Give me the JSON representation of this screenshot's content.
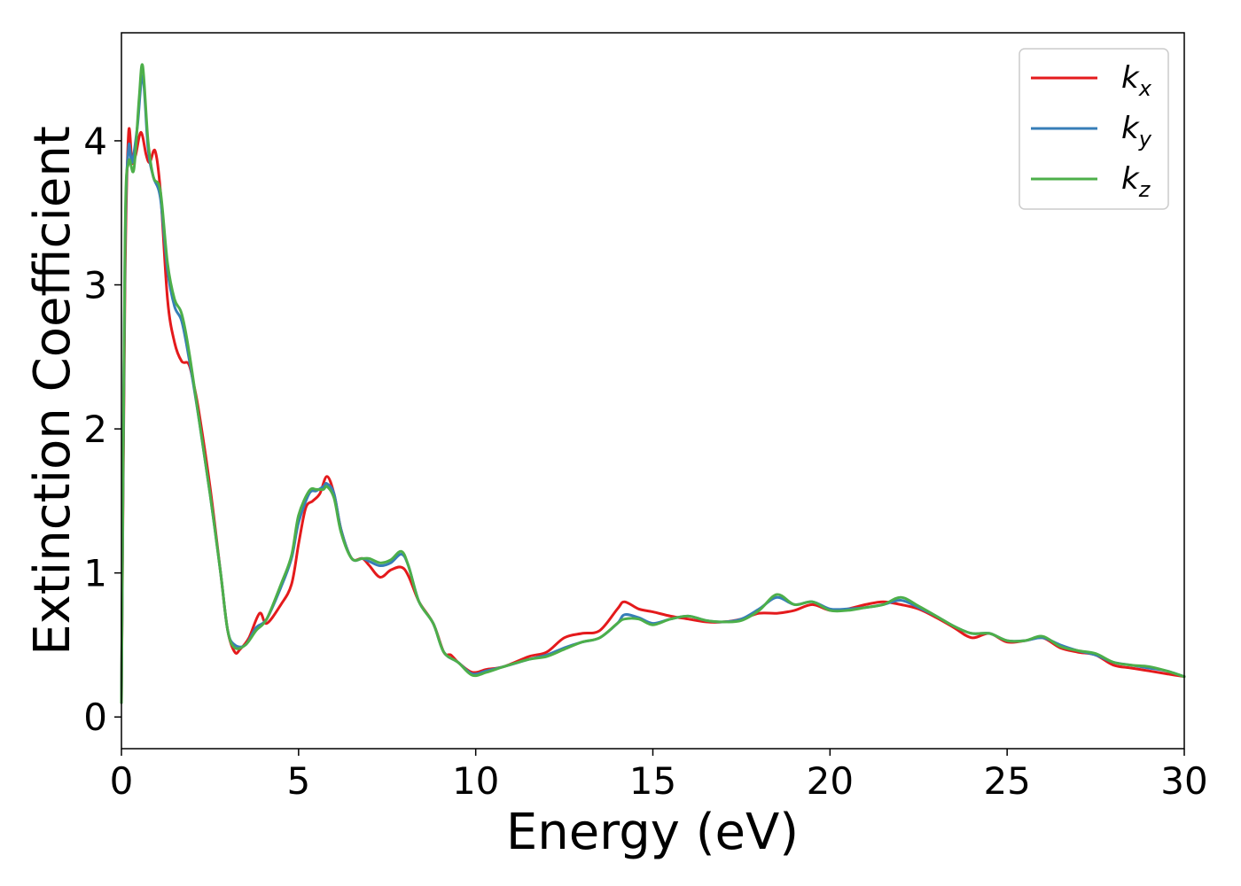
{
  "chart_data": {
    "type": "line",
    "xlabel": "Energy (eV)",
    "ylabel": "Extinction Coefficient",
    "xlim": [
      0,
      30
    ],
    "ylim": [
      -0.22,
      4.75
    ],
    "xticks": [
      "0",
      "5",
      "10",
      "15",
      "20",
      "25",
      "30"
    ],
    "yticks": [
      "0",
      "1",
      "2",
      "3",
      "4"
    ],
    "grid": false,
    "legend_position": "top-right",
    "series": [
      {
        "name": "k",
        "subscript": "x",
        "color": "#e41a1c",
        "x": [
          0,
          0.1,
          0.2,
          0.3,
          0.4,
          0.55,
          0.7,
          0.8,
          0.95,
          1.1,
          1.3,
          1.5,
          1.7,
          1.9,
          2.05,
          2.2,
          2.5,
          2.8,
          3.0,
          3.2,
          3.35,
          3.6,
          3.9,
          4.1,
          4.5,
          4.8,
          5.0,
          5.2,
          5.4,
          5.6,
          5.8,
          6.0,
          6.2,
          6.5,
          6.8,
          7.0,
          7.3,
          7.6,
          7.9,
          8.1,
          8.4,
          8.8,
          9.1,
          9.3,
          9.5,
          9.9,
          10.3,
          10.8,
          11.5,
          12.0,
          12.5,
          13.0,
          13.5,
          14.0,
          14.2,
          14.6,
          15.0,
          15.5,
          16.0,
          16.5,
          17.0,
          17.5,
          18.0,
          18.5,
          19.0,
          19.5,
          20.0,
          20.5,
          21.0,
          21.5,
          22.0,
          22.5,
          23.0,
          23.5,
          24.0,
          24.5,
          25.0,
          25.5,
          26.0,
          26.5,
          27.0,
          27.5,
          28.0,
          28.5,
          29.0,
          29.5,
          30.0
        ],
        "y": [
          0.1,
          3.0,
          4.05,
          3.85,
          3.9,
          4.06,
          3.9,
          3.85,
          3.93,
          3.65,
          2.9,
          2.6,
          2.47,
          2.45,
          2.3,
          2.1,
          1.6,
          1.0,
          0.6,
          0.45,
          0.47,
          0.55,
          0.72,
          0.65,
          0.78,
          0.92,
          1.2,
          1.45,
          1.5,
          1.55,
          1.67,
          1.55,
          1.3,
          1.1,
          1.1,
          1.05,
          0.97,
          1.02,
          1.04,
          0.98,
          0.8,
          0.65,
          0.45,
          0.43,
          0.38,
          0.31,
          0.33,
          0.35,
          0.42,
          0.45,
          0.55,
          0.58,
          0.6,
          0.75,
          0.8,
          0.75,
          0.73,
          0.7,
          0.68,
          0.66,
          0.66,
          0.68,
          0.72,
          0.72,
          0.74,
          0.78,
          0.74,
          0.75,
          0.78,
          0.8,
          0.78,
          0.75,
          0.69,
          0.62,
          0.55,
          0.58,
          0.52,
          0.53,
          0.55,
          0.48,
          0.45,
          0.43,
          0.36,
          0.34,
          0.32,
          0.3,
          0.28
        ]
      },
      {
        "name": "k",
        "subscript": "y",
        "color": "#377eb8",
        "x": [
          0,
          0.1,
          0.2,
          0.3,
          0.45,
          0.6,
          0.75,
          0.9,
          1.1,
          1.3,
          1.5,
          1.7,
          1.9,
          2.2,
          2.5,
          2.8,
          3.0,
          3.2,
          3.5,
          3.8,
          4.1,
          4.5,
          4.8,
          5.0,
          5.3,
          5.5,
          5.7,
          5.8,
          6.0,
          6.2,
          6.5,
          6.8,
          7.0,
          7.3,
          7.6,
          7.9,
          8.1,
          8.4,
          8.8,
          9.1,
          9.5,
          9.9,
          10.3,
          10.8,
          11.5,
          12.0,
          12.5,
          13.0,
          13.5,
          14.0,
          14.2,
          14.6,
          15.0,
          15.5,
          16.0,
          16.5,
          17.0,
          17.5,
          18.0,
          18.5,
          19.0,
          19.5,
          20.0,
          20.5,
          21.0,
          21.5,
          22.0,
          22.5,
          23.0,
          23.5,
          24.0,
          24.5,
          25.0,
          25.5,
          26.0,
          26.5,
          27.0,
          27.5,
          28.0,
          28.5,
          29.0,
          29.5,
          30.0
        ],
        "y": [
          0.1,
          3.2,
          3.95,
          3.85,
          4.1,
          4.45,
          3.95,
          3.75,
          3.6,
          3.1,
          2.85,
          2.75,
          2.5,
          2.05,
          1.55,
          1.0,
          0.6,
          0.5,
          0.5,
          0.62,
          0.68,
          0.9,
          1.1,
          1.35,
          1.55,
          1.57,
          1.6,
          1.62,
          1.55,
          1.3,
          1.1,
          1.1,
          1.08,
          1.05,
          1.07,
          1.13,
          1.05,
          0.8,
          0.65,
          0.45,
          0.38,
          0.3,
          0.32,
          0.35,
          0.4,
          0.43,
          0.48,
          0.52,
          0.55,
          0.65,
          0.71,
          0.69,
          0.65,
          0.68,
          0.7,
          0.67,
          0.66,
          0.68,
          0.75,
          0.83,
          0.78,
          0.8,
          0.75,
          0.75,
          0.76,
          0.78,
          0.81,
          0.76,
          0.7,
          0.63,
          0.58,
          0.58,
          0.53,
          0.53,
          0.55,
          0.5,
          0.46,
          0.43,
          0.38,
          0.36,
          0.34,
          0.32,
          0.28
        ]
      },
      {
        "name": "k",
        "subscript": "z",
        "color": "#4daf4a",
        "x": [
          0,
          0.1,
          0.2,
          0.35,
          0.5,
          0.6,
          0.75,
          0.9,
          1.1,
          1.3,
          1.5,
          1.7,
          1.9,
          2.2,
          2.5,
          2.8,
          3.0,
          3.2,
          3.5,
          3.8,
          4.1,
          4.5,
          4.8,
          5.0,
          5.3,
          5.5,
          5.7,
          5.8,
          6.0,
          6.2,
          6.5,
          6.8,
          7.0,
          7.3,
          7.6,
          7.9,
          8.1,
          8.4,
          8.8,
          9.1,
          9.5,
          9.9,
          10.3,
          10.8,
          11.5,
          12.0,
          12.5,
          13.0,
          13.5,
          14.0,
          14.2,
          14.6,
          15.0,
          15.5,
          16.0,
          16.5,
          17.0,
          17.5,
          18.0,
          18.5,
          19.0,
          19.5,
          20.0,
          20.5,
          21.0,
          21.5,
          22.0,
          22.5,
          23.0,
          23.5,
          24.0,
          24.5,
          25.0,
          25.5,
          26.0,
          26.5,
          27.0,
          27.5,
          28.0,
          28.5,
          29.0,
          29.5,
          30.0
        ],
        "y": [
          0.1,
          3.3,
          3.85,
          3.8,
          4.3,
          4.52,
          4.0,
          3.75,
          3.65,
          3.15,
          2.9,
          2.8,
          2.55,
          2.05,
          1.55,
          1.0,
          0.6,
          0.48,
          0.5,
          0.6,
          0.68,
          0.92,
          1.12,
          1.4,
          1.57,
          1.58,
          1.58,
          1.6,
          1.52,
          1.28,
          1.1,
          1.1,
          1.1,
          1.07,
          1.09,
          1.15,
          1.05,
          0.8,
          0.65,
          0.45,
          0.38,
          0.29,
          0.31,
          0.35,
          0.4,
          0.42,
          0.47,
          0.52,
          0.55,
          0.65,
          0.68,
          0.68,
          0.64,
          0.68,
          0.7,
          0.67,
          0.66,
          0.67,
          0.74,
          0.85,
          0.78,
          0.8,
          0.74,
          0.74,
          0.76,
          0.78,
          0.83,
          0.77,
          0.7,
          0.63,
          0.58,
          0.58,
          0.53,
          0.53,
          0.56,
          0.49,
          0.46,
          0.44,
          0.38,
          0.36,
          0.35,
          0.32,
          0.28
        ]
      }
    ]
  }
}
